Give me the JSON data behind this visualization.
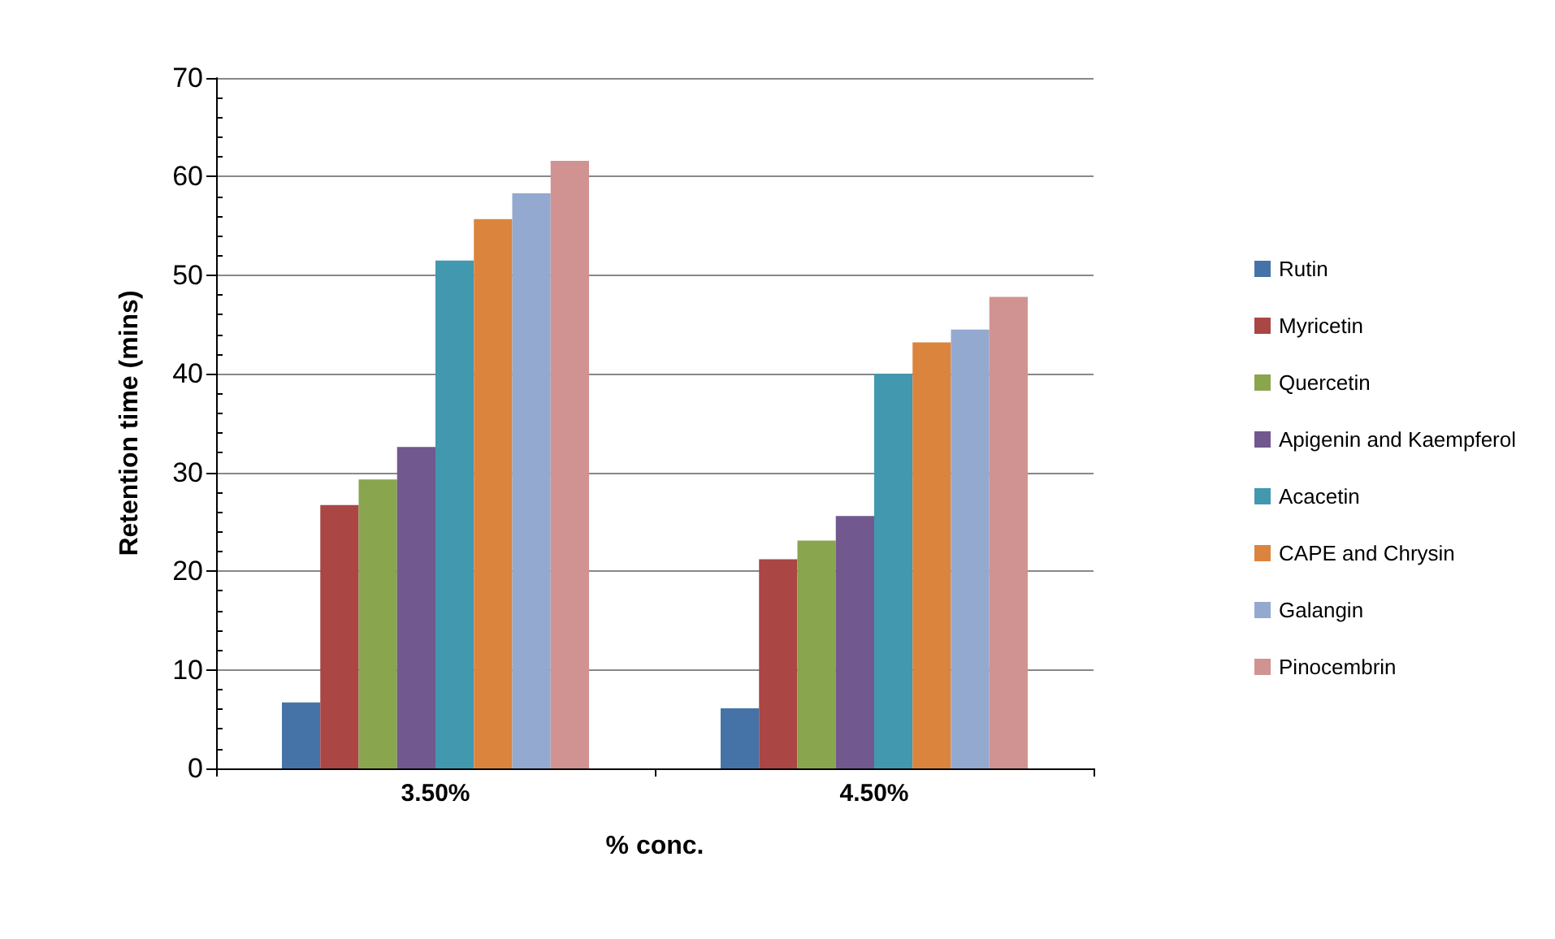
{
  "chart_data": {
    "type": "bar",
    "xlabel": "% conc.",
    "ylabel": "Retention time (mins)",
    "categories": [
      "3.50%",
      "4.50%"
    ],
    "series": [
      {
        "name": "Rutin",
        "color": "#4573a7",
        "values": [
          6.7,
          6.1
        ]
      },
      {
        "name": "Myricetin",
        "color": "#aa4644",
        "values": [
          26.7,
          21.2
        ]
      },
      {
        "name": "Quercetin",
        "color": "#89a54e",
        "values": [
          29.3,
          23.1
        ]
      },
      {
        "name": "Apigenin and Kaempferol",
        "color": "#71588f",
        "values": [
          32.6,
          25.6
        ]
      },
      {
        "name": "Acacetin",
        "color": "#4198af",
        "values": [
          51.5,
          40.0
        ]
      },
      {
        "name": "CAPE and Chrysin",
        "color": "#db843d",
        "values": [
          55.7,
          43.2
        ]
      },
      {
        "name": "Galangin",
        "color": "#93a9cf",
        "values": [
          58.3,
          44.5
        ]
      },
      {
        "name": "Pinocembrin",
        "color": "#d19392",
        "values": [
          61.6,
          47.8
        ]
      }
    ],
    "ylim": [
      0,
      70
    ],
    "yticks": [
      0,
      10,
      20,
      30,
      40,
      50,
      60,
      70
    ],
    "grid": "y",
    "legend": "right"
  }
}
